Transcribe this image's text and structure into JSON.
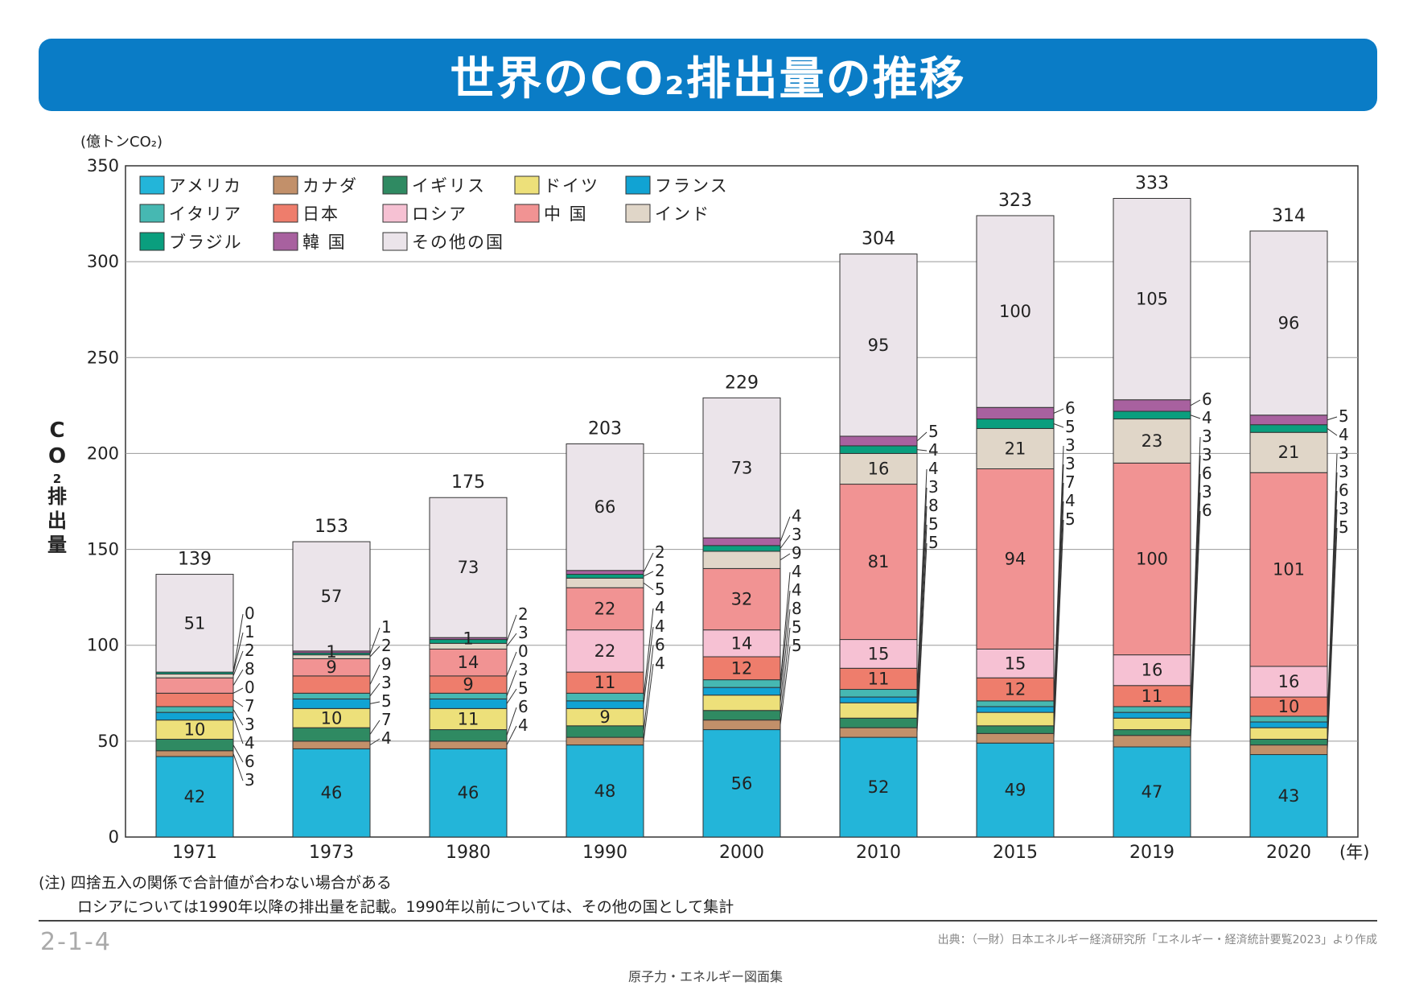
{
  "title": "世界のCO₂排出量の推移",
  "colors": {
    "banner": "#0a7cc6",
    "アメリカ": "#23b5d9",
    "カナダ": "#c2906a",
    "イギリス": "#2f8a62",
    "ドイツ": "#ede07a",
    "フランス": "#11a3d3",
    "イタリア": "#46b8b2",
    "日本": "#ee7d6c",
    "ロシア": "#f6c1d3",
    "中国": "#f19393",
    "インド": "#e0d6c8",
    "ブラジル": "#0a9e7e",
    "韓国": "#a8619f",
    "その他の国": "#ebe4ea"
  },
  "chart_data": {
    "type": "bar",
    "stacked": true,
    "unit_label": "(億トンCO₂)",
    "ylabel_chars": [
      "C",
      "O",
      "2",
      "排",
      "出",
      "量"
    ],
    "xunit": "(年)",
    "ylim": [
      0,
      350
    ],
    "yticks": [
      "0",
      "50",
      "100",
      "150",
      "200",
      "250",
      "300",
      "350"
    ],
    "grid": true,
    "legend_position": "top-left",
    "categories": [
      "1971",
      "1973",
      "1980",
      "1990",
      "2000",
      "2010",
      "2015",
      "2019",
      "2020"
    ],
    "totals": [
      "139",
      "153",
      "175",
      "203",
      "229",
      "304",
      "323",
      "333",
      "314"
    ],
    "series": [
      {
        "name": "アメリカ",
        "values": [
          42,
          46,
          46,
          48,
          56,
          52,
          49,
          47,
          43
        ]
      },
      {
        "name": "カナダ",
        "values": [
          3,
          4,
          4,
          4,
          5,
          5,
          5,
          6,
          5
        ]
      },
      {
        "name": "イギリス",
        "values": [
          6,
          7,
          6,
          6,
          5,
          5,
          4,
          3,
          3
        ]
      },
      {
        "name": "ドイツ",
        "values": [
          10,
          10,
          11,
          9,
          8,
          8,
          7,
          6,
          6
        ]
      },
      {
        "name": "フランス",
        "values": [
          4,
          5,
          5,
          4,
          4,
          3,
          3,
          3,
          3
        ]
      },
      {
        "name": "イタリア",
        "values": [
          3,
          3,
          3,
          4,
          4,
          4,
          3,
          3,
          3
        ]
      },
      {
        "name": "日本",
        "values": [
          7,
          9,
          9,
          11,
          12,
          11,
          12,
          11,
          10
        ]
      },
      {
        "name": "ロシア",
        "values": [
          0,
          0,
          0,
          22,
          14,
          15,
          15,
          16,
          16
        ]
      },
      {
        "name": "中国",
        "values": [
          8,
          9,
          14,
          22,
          32,
          81,
          94,
          100,
          101
        ]
      },
      {
        "name": "インド",
        "values": [
          2,
          2,
          3,
          5,
          9,
          16,
          21,
          23,
          21
        ]
      },
      {
        "name": "ブラジル",
        "values": [
          1,
          1,
          2,
          2,
          3,
          4,
          5,
          4,
          4
        ]
      },
      {
        "name": "韓国",
        "values": [
          0,
          1,
          1,
          2,
          4,
          5,
          6,
          6,
          5
        ]
      },
      {
        "name": "その他の国",
        "values": [
          51,
          57,
          73,
          66,
          73,
          95,
          100,
          105,
          96
        ]
      }
    ],
    "legend": [
      "アメリカ",
      "カナダ",
      "イギリス",
      "ドイツ",
      "フランス",
      "イタリア",
      "日本",
      "ロシア",
      "中国",
      "インド",
      "ブラジル",
      "韓国",
      "その他の国"
    ],
    "legend_labels": [
      "アメリカ",
      "カナダ",
      "イギリス",
      "ドイツ",
      "フランス",
      "イタリア",
      "日本",
      "ロシア",
      "中 国",
      "インド",
      "ブラジル",
      "韓 国",
      "その他の国"
    ]
  },
  "notes": {
    "line1": "(注) 四捨五入の関係で合計値が合わない場合がある",
    "line2": "ロシアについては1990年以降の排出量を記載。1990年以前については、その他の国として集計"
  },
  "footer": {
    "page_code": "2-1-4",
    "source": "出典：（一財）日本エネルギー経済研究所「エネルギー・経済統計要覧2023」より作成",
    "book": "原子力・エネルギー図面集"
  }
}
